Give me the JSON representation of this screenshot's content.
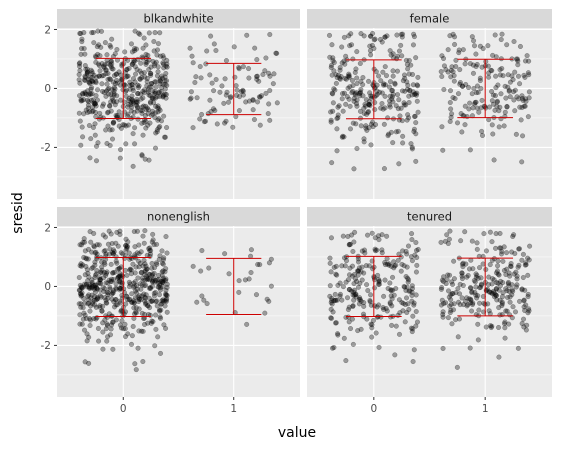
{
  "chart_data": {
    "type": "scatter",
    "subtype": "faceted jitter plot with mean ± 1 SD error bars",
    "xlabel": "value",
    "ylabel": "sresid",
    "x_categories": [
      "0",
      "1"
    ],
    "y_ticks": [
      -2,
      0,
      2
    ],
    "y_tick_labels": [
      "-2",
      "0",
      "2"
    ],
    "ylim": [
      -3.75,
      2.05
    ],
    "xlim": [
      -0.6,
      1.6
    ],
    "grid": true,
    "facet_layout": "2x2",
    "colors": {
      "panel_bg": "#ebebeb",
      "grid_major": "#ffffff",
      "strip_bg": "#d9d9d9",
      "points": "#000000",
      "point_alpha": 0.35,
      "errorbar": "#cc0000"
    },
    "facets": [
      {
        "name": "blkandwhite",
        "groups": [
          {
            "x": "0",
            "n": 460,
            "mean": 0.0,
            "sd": 1.02,
            "min": -3.25,
            "max": 1.95
          },
          {
            "x": "1",
            "n": 95,
            "mean": -0.02,
            "sd": 0.87,
            "min": -1.4,
            "max": 1.85
          }
        ]
      },
      {
        "name": "female",
        "groups": [
          {
            "x": "0",
            "n": 280,
            "mean": -0.03,
            "sd": 1.0,
            "min": -3.45,
            "max": 1.9
          },
          {
            "x": "1",
            "n": 185,
            "mean": 0.0,
            "sd": 0.99,
            "min": -3.1,
            "max": 1.85
          }
        ]
      },
      {
        "name": "nonenglish",
        "groups": [
          {
            "x": "0",
            "n": 520,
            "mean": -0.02,
            "sd": 1.0,
            "min": -3.5,
            "max": 1.9
          },
          {
            "x": "1",
            "n": 28,
            "mean": 0.0,
            "sd": 0.95,
            "min": -2.05,
            "max": 1.8
          }
        ]
      },
      {
        "name": "tenured",
        "groups": [
          {
            "x": "0",
            "n": 255,
            "mean": 0.0,
            "sd": 1.02,
            "min": -3.15,
            "max": 1.85
          },
          {
            "x": "1",
            "n": 265,
            "mean": -0.02,
            "sd": 0.98,
            "min": -3.5,
            "max": 1.9
          }
        ]
      }
    ]
  }
}
